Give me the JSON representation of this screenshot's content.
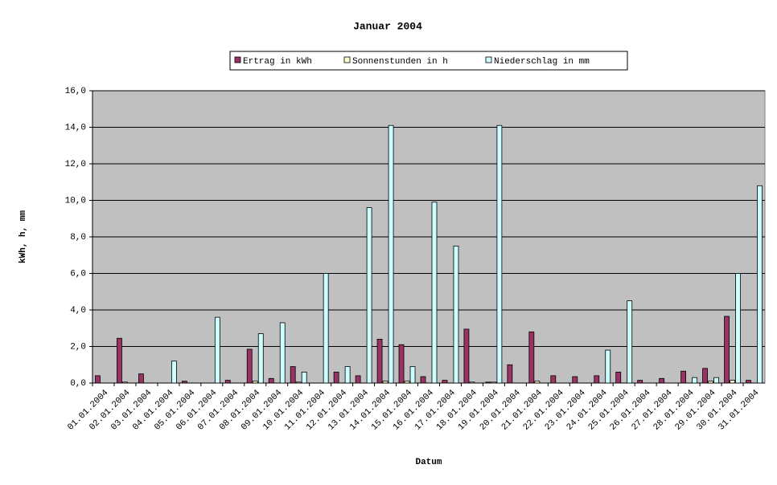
{
  "chart_data": {
    "type": "bar",
    "title": "Januar 2004",
    "x_label": "Datum",
    "y_label": "kWh, h, mm",
    "categories": [
      "01.01.2004",
      "02.01.2004",
      "03.01.2004",
      "04.01.2004",
      "05.01.2004",
      "06.01.2004",
      "07.01.2004",
      "08.01.2004",
      "09.01.2004",
      "10.01.2004",
      "11.01.2004",
      "12.01.2004",
      "13.01.2004",
      "14.01.2004",
      "15.01.2004",
      "16.01.2004",
      "17.01.2004",
      "18.01.2004",
      "19.01.2004",
      "20.01.2004",
      "21.01.2004",
      "22.01.2004",
      "23.01.2004",
      "24.01.2004",
      "25.01.2004",
      "26.01.2004",
      "27.01.2004",
      "28.01.2004",
      "29.01.2004",
      "30.01.2004",
      "31.01.2004"
    ],
    "series": [
      {
        "name": "Ertrag in kWh",
        "color": "#993366",
        "values": [
          0.4,
          2.45,
          0.5,
          0,
          0.1,
          0,
          0.15,
          1.85,
          0.25,
          0.9,
          0,
          0.6,
          0.4,
          2.4,
          2.1,
          0.35,
          0.15,
          2.95,
          0.05,
          1.0,
          2.8,
          0.4,
          0.35,
          0.4,
          0.6,
          0.15,
          0.25,
          0.65,
          0.8,
          3.65,
          0.15
        ]
      },
      {
        "name": "Sonnenstunden in h",
        "color": "#ffffcc",
        "values": [
          0,
          0.05,
          0,
          0,
          0,
          0,
          0,
          0.1,
          0,
          0.05,
          0,
          0,
          0,
          0.1,
          0.1,
          0,
          0,
          0.05,
          0.05,
          0,
          0.1,
          0,
          0,
          0,
          0,
          0,
          0,
          0,
          0.1,
          0.15,
          0
        ]
      },
      {
        "name": "Niederschlag in mm",
        "color": "#ccffff",
        "values": [
          0,
          0,
          0,
          1.2,
          0,
          3.6,
          0,
          2.7,
          3.3,
          0.6,
          6.0,
          0.9,
          9.6,
          14.1,
          0.9,
          9.9,
          7.5,
          0,
          14.1,
          0,
          0,
          0,
          0,
          1.8,
          4.5,
          0,
          0,
          0.3,
          0.3,
          6.0,
          10.8
        ]
      }
    ],
    "ylim": [
      0,
      16
    ],
    "yticks": [
      {
        "value": 0,
        "label": "0,0"
      },
      {
        "value": 2,
        "label": "2,0"
      },
      {
        "value": 4,
        "label": "4,0"
      },
      {
        "value": 6,
        "label": "6,0"
      },
      {
        "value": 8,
        "label": "8,0"
      },
      {
        "value": 10,
        "label": "10,0"
      },
      {
        "value": 12,
        "label": "12,0"
      },
      {
        "value": 14,
        "label": "14,0"
      },
      {
        "value": 16,
        "label": "16,0"
      }
    ],
    "grid": true,
    "plot_background": "#c0c0c0",
    "legend_position": "top"
  }
}
